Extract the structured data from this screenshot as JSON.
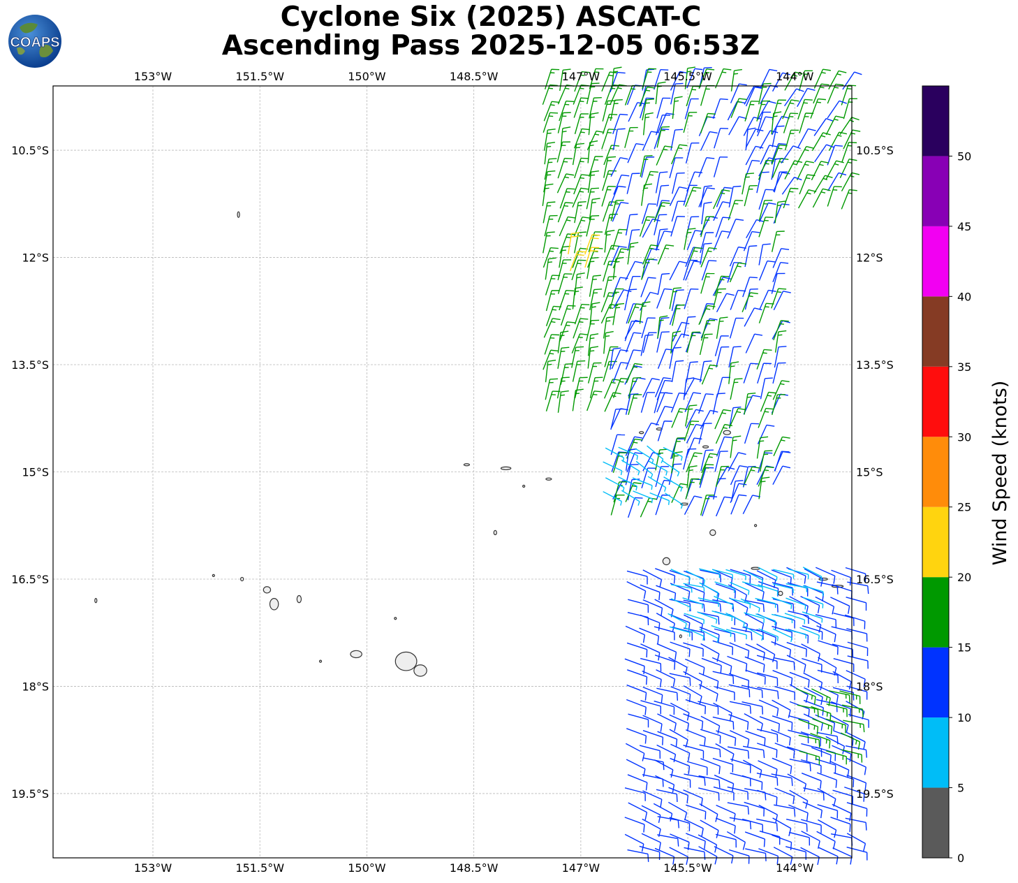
{
  "title": {
    "line1": "Cyclone Six (2025) ASCAT-C",
    "line2": "Ascending Pass 2025-12-05 06:53Z"
  },
  "logo": {
    "text": "COAPS",
    "icon": "globe-logo-icon"
  },
  "map": {
    "lon_range": [
      -154.4,
      -143.2
    ],
    "lat_range": [
      -9.6,
      -20.4
    ],
    "lon_ticks": [
      {
        "value": -153.0,
        "label": "153°W"
      },
      {
        "value": -151.5,
        "label": "151.5°W"
      },
      {
        "value": -150.0,
        "label": "150°W"
      },
      {
        "value": -148.5,
        "label": "148.5°W"
      },
      {
        "value": -147.0,
        "label": "147°W"
      },
      {
        "value": -145.5,
        "label": "145.5°W"
      },
      {
        "value": -144.0,
        "label": "144°W"
      }
    ],
    "lat_ticks": [
      {
        "value": -10.5,
        "label": "10.5°S"
      },
      {
        "value": -12.0,
        "label": "12°S"
      },
      {
        "value": -13.5,
        "label": "13.5°S"
      },
      {
        "value": -15.0,
        "label": "15°S"
      },
      {
        "value": -16.5,
        "label": "16.5°S"
      },
      {
        "value": -18.0,
        "label": "18°S"
      },
      {
        "value": -19.5,
        "label": "19.5°S"
      }
    ],
    "grid": true,
    "islands": [
      {
        "lon": -151.8,
        "lat": -11.4,
        "rx": 0.015,
        "ry": 0.04
      },
      {
        "lon": -148.6,
        "lat": -14.9,
        "rx": 0.04,
        "ry": 0.015
      },
      {
        "lon": -148.05,
        "lat": -14.95,
        "rx": 0.07,
        "ry": 0.02
      },
      {
        "lon": -147.45,
        "lat": -15.1,
        "rx": 0.04,
        "ry": 0.015
      },
      {
        "lon": -147.8,
        "lat": -15.2,
        "rx": 0.015,
        "ry": 0.01
      },
      {
        "lon": -148.2,
        "lat": -15.85,
        "rx": 0.02,
        "ry": 0.03
      },
      {
        "lon": -151.75,
        "lat": -16.5,
        "rx": 0.02,
        "ry": 0.025
      },
      {
        "lon": -151.4,
        "lat": -16.65,
        "rx": 0.05,
        "ry": 0.045
      },
      {
        "lon": -151.3,
        "lat": -16.85,
        "rx": 0.06,
        "ry": 0.08
      },
      {
        "lon": -150.95,
        "lat": -16.78,
        "rx": 0.03,
        "ry": 0.05
      },
      {
        "lon": -153.8,
        "lat": -16.8,
        "rx": 0.01,
        "ry": 0.03
      },
      {
        "lon": -149.6,
        "lat": -17.05,
        "rx": 0.01,
        "ry": 0.01
      },
      {
        "lon": -150.15,
        "lat": -17.55,
        "rx": 0.08,
        "ry": 0.05
      },
      {
        "lon": -149.45,
        "lat": -17.65,
        "rx": 0.15,
        "ry": 0.13
      },
      {
        "lon": -149.25,
        "lat": -17.78,
        "rx": 0.09,
        "ry": 0.08
      },
      {
        "lon": -150.65,
        "lat": -17.65,
        "rx": 0.01,
        "ry": 0.01
      },
      {
        "lon": -152.15,
        "lat": -16.45,
        "rx": 0.01,
        "ry": 0.01
      },
      {
        "lon": -145.9,
        "lat": -14.4,
        "rx": 0.04,
        "ry": 0.015
      },
      {
        "lon": -146.15,
        "lat": -14.45,
        "rx": 0.03,
        "ry": 0.015
      },
      {
        "lon": -145.25,
        "lat": -14.65,
        "rx": 0.04,
        "ry": 0.015
      },
      {
        "lon": -144.95,
        "lat": -14.45,
        "rx": 0.05,
        "ry": 0.03
      },
      {
        "lon": -145.55,
        "lat": -15.45,
        "rx": 0.05,
        "ry": 0.012
      },
      {
        "lon": -145.15,
        "lat": -15.85,
        "rx": 0.04,
        "ry": 0.04
      },
      {
        "lon": -144.55,
        "lat": -15.75,
        "rx": 0.015,
        "ry": 0.015
      },
      {
        "lon": -145.8,
        "lat": -16.25,
        "rx": 0.05,
        "ry": 0.05
      },
      {
        "lon": -144.55,
        "lat": -16.35,
        "rx": 0.06,
        "ry": 0.015
      },
      {
        "lon": -144.2,
        "lat": -16.7,
        "rx": 0.03,
        "ry": 0.03
      },
      {
        "lon": -143.6,
        "lat": -16.5,
        "rx": 0.06,
        "ry": 0.015
      },
      {
        "lon": -143.4,
        "lat": -16.6,
        "rx": 0.08,
        "ry": 0.015
      },
      {
        "lon": -145.6,
        "lat": -17.3,
        "rx": 0.01,
        "ry": 0.02
      }
    ]
  },
  "colorbar": {
    "label": "Wind Speed (knots)",
    "bins": [
      {
        "from": 0,
        "to": 5,
        "color": "#5a5a5a"
      },
      {
        "from": 5,
        "to": 10,
        "color": "#00bdf7"
      },
      {
        "from": 10,
        "to": 15,
        "color": "#0033ff"
      },
      {
        "from": 15,
        "to": 20,
        "color": "#009900"
      },
      {
        "from": 20,
        "to": 25,
        "color": "#ffd40f"
      },
      {
        "from": 25,
        "to": 30,
        "color": "#ff8c0a"
      },
      {
        "from": 30,
        "to": 35,
        "color": "#ff0d0d"
      },
      {
        "from": 35,
        "to": 40,
        "color": "#853b24"
      },
      {
        "from": 40,
        "to": 45,
        "color": "#f200f2"
      },
      {
        "from": 45,
        "to": 50,
        "color": "#8800b5"
      },
      {
        "from": 50,
        "to": 55,
        "color": "#2a005e"
      }
    ],
    "tick_values": [
      0,
      5,
      10,
      15,
      20,
      25,
      30,
      35,
      40,
      45,
      50
    ]
  },
  "wind_regions": [
    {
      "name": "north-green-west",
      "lon": [
        -147.55,
        -146.6
      ],
      "lat": [
        -9.6,
        -14.4
      ],
      "speed_kt": 17,
      "dir_deg": 15
    },
    {
      "name": "north-yellow",
      "lon": [
        -147.2,
        -146.8
      ],
      "lat": [
        -11.9,
        -12.35
      ],
      "speed_kt": 22,
      "dir_deg": 15
    },
    {
      "name": "north-blue-mid",
      "lon": [
        -146.6,
        -144.2
      ],
      "lat": [
        -9.6,
        -15.8
      ],
      "speed_kt": 13,
      "dir_deg": 20
    },
    {
      "name": "north-green-mid",
      "lon": [
        -146.6,
        -144.2
      ],
      "lat": [
        -9.6,
        -15.8
      ],
      "speed_kt": 16,
      "dir_deg": 15
    },
    {
      "name": "north-green-east",
      "lon": [
        -144.2,
        -143.2
      ],
      "lat": [
        -9.6,
        -11.5
      ],
      "speed_kt": 16,
      "dir_deg": 25
    },
    {
      "name": "center-cyan",
      "lon": [
        -146.7,
        -145.6
      ],
      "lat": [
        -14.6,
        -15.5
      ],
      "speed_kt": 8,
      "dir_deg": 120
    },
    {
      "name": "south-blue",
      "lon": [
        -146.4,
        -143.2
      ],
      "lat": [
        -16.3,
        -20.4
      ],
      "speed_kt": 12,
      "dir_deg": 110
    },
    {
      "name": "south-cyan",
      "lon": [
        -145.8,
        -143.8
      ],
      "lat": [
        -16.3,
        -17.4
      ],
      "speed_kt": 8,
      "dir_deg": 110
    },
    {
      "name": "south-green",
      "lon": [
        -144.0,
        -143.2
      ],
      "lat": [
        -18.0,
        -19.0
      ],
      "speed_kt": 16,
      "dir_deg": 110
    }
  ]
}
